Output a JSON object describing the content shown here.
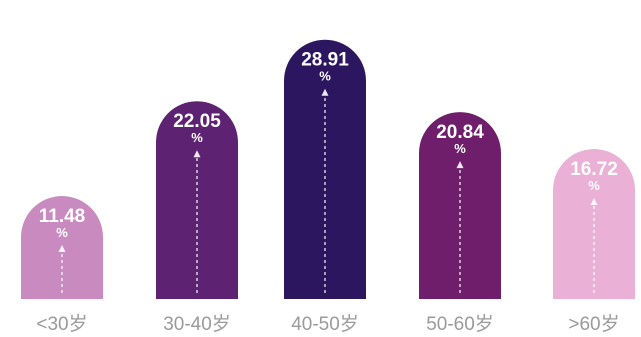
{
  "chart_data": {
    "type": "bar",
    "title": "",
    "xlabel": "",
    "ylabel": "",
    "ylim": [
      0,
      32
    ],
    "grid": false,
    "categories": [
      "<30岁",
      "30-40岁",
      "40-50岁",
      "50-60岁",
      ">60岁"
    ],
    "values": [
      11.48,
      22.05,
      28.91,
      20.84,
      16.72
    ],
    "value_labels": [
      "11.48",
      "22.05",
      "28.91",
      "20.84",
      "16.72"
    ],
    "unit": "%",
    "colors": [
      "#c98ac0",
      "#5e2273",
      "#2d1660",
      "#6e1e6a",
      "#eab0d6"
    ]
  }
}
